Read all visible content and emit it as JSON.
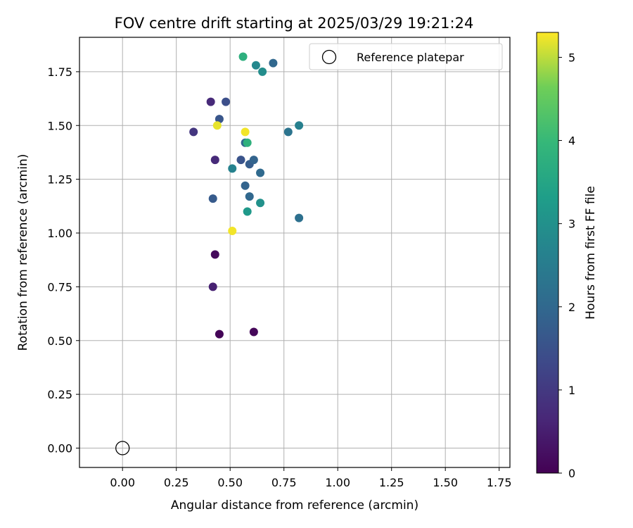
{
  "chart_data": {
    "type": "scatter",
    "title": "FOV centre drift starting at 2025/03/29 19:21:24",
    "xlabel": "Angular distance from reference (arcmin)",
    "ylabel": "Rotation from reference (arcmin)",
    "xlim": [
      -0.2,
      1.8
    ],
    "ylim": [
      -0.09,
      1.91
    ],
    "xticks": [
      "0.00",
      "0.25",
      "0.50",
      "0.75",
      "1.00",
      "1.25",
      "1.50",
      "1.75"
    ],
    "yticks": [
      "0.00",
      "0.25",
      "0.50",
      "0.75",
      "1.00",
      "1.25",
      "1.50",
      "1.75"
    ],
    "grid": true,
    "legend": {
      "position": "top-right",
      "entries": [
        "Reference platepar"
      ]
    },
    "reference_point": {
      "x": 0.0,
      "y": 0.0,
      "label": "Reference platepar"
    },
    "colorbar": {
      "label": "Hours from first FF file",
      "range": [
        0,
        5.3
      ],
      "ticks": [
        "0",
        "1",
        "2",
        "3",
        "4",
        "5"
      ],
      "colormap": "viridis"
    },
    "series": [
      {
        "points": [
          {
            "x": 0.45,
            "y": 0.53,
            "hours": 0.05
          },
          {
            "x": 0.61,
            "y": 0.54,
            "hours": 0.1
          },
          {
            "x": 0.43,
            "y": 0.9,
            "hours": 0.15
          },
          {
            "x": 0.42,
            "y": 0.75,
            "hours": 0.55
          },
          {
            "x": 0.43,
            "y": 1.34,
            "hours": 0.7
          },
          {
            "x": 0.41,
            "y": 1.61,
            "hours": 0.7
          },
          {
            "x": 0.33,
            "y": 1.47,
            "hours": 0.95
          },
          {
            "x": 0.48,
            "y": 1.61,
            "hours": 1.45
          },
          {
            "x": 0.45,
            "y": 1.53,
            "hours": 1.6
          },
          {
            "x": 0.55,
            "y": 1.34,
            "hours": 1.55
          },
          {
            "x": 0.42,
            "y": 1.16,
            "hours": 1.7
          },
          {
            "x": 0.59,
            "y": 1.32,
            "hours": 1.75
          },
          {
            "x": 0.61,
            "y": 1.34,
            "hours": 1.9
          },
          {
            "x": 0.57,
            "y": 1.22,
            "hours": 1.9
          },
          {
            "x": 0.59,
            "y": 1.17,
            "hours": 2.0
          },
          {
            "x": 0.64,
            "y": 1.28,
            "hours": 2.05
          },
          {
            "x": 0.57,
            "y": 1.42,
            "hours": 2.0
          },
          {
            "x": 0.7,
            "y": 1.79,
            "hours": 2.0
          },
          {
            "x": 0.77,
            "y": 1.47,
            "hours": 2.3
          },
          {
            "x": 0.82,
            "y": 1.07,
            "hours": 2.2
          },
          {
            "x": 0.82,
            "y": 1.5,
            "hours": 2.6
          },
          {
            "x": 0.51,
            "y": 1.3,
            "hours": 2.65
          },
          {
            "x": 0.62,
            "y": 1.78,
            "hours": 2.8
          },
          {
            "x": 0.65,
            "y": 1.75,
            "hours": 2.9
          },
          {
            "x": 0.64,
            "y": 1.14,
            "hours": 3.0
          },
          {
            "x": 0.58,
            "y": 1.1,
            "hours": 3.2
          },
          {
            "x": 0.58,
            "y": 1.42,
            "hours": 3.8
          },
          {
            "x": 0.56,
            "y": 1.82,
            "hours": 3.75
          },
          {
            "x": 0.44,
            "y": 1.5,
            "hours": 5.2
          },
          {
            "x": 0.57,
            "y": 1.47,
            "hours": 5.25
          },
          {
            "x": 0.51,
            "y": 1.01,
            "hours": 5.25
          }
        ]
      }
    ]
  }
}
